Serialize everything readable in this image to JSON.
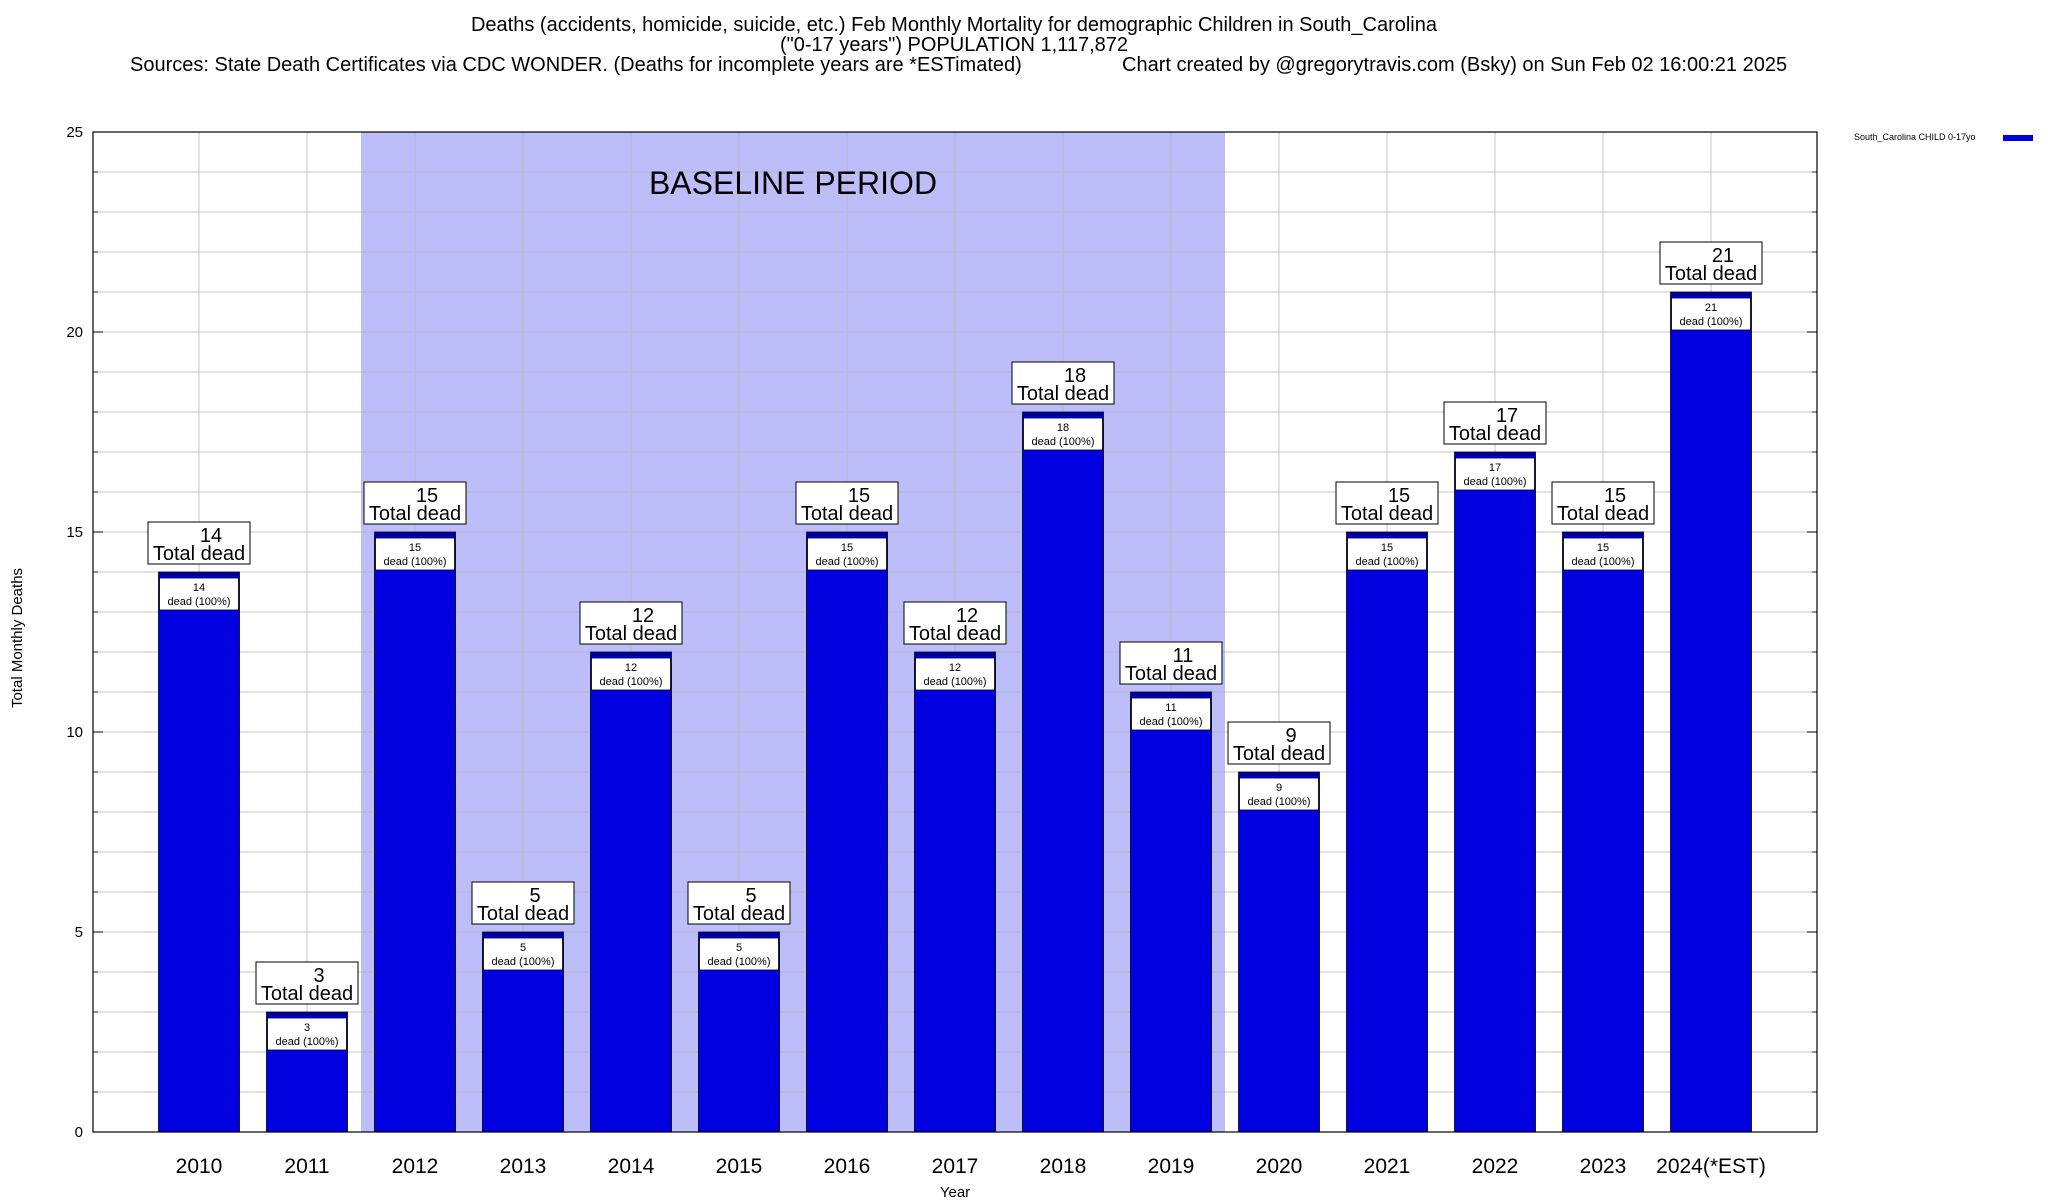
{
  "chart_data": {
    "type": "bar",
    "title": "Deaths (accidents, homicide, suicide, etc.) Feb Monthly Mortality for demographic Children in South_Carolina",
    "subtitle": "(\"0-17 years\") POPULATION 1,117,872",
    "sources": "Sources: State Death Certificates via CDC WONDER. (Deaths for incomplete years are *ESTimated)",
    "credit": "Chart created by @gregorytravis.com (Bsky) on Sun Feb 02 16:00:21 2025",
    "xlabel": "Year",
    "ylabel": "Total Monthly Deaths",
    "ylim": [
      0,
      25
    ],
    "yticks": [
      0,
      5,
      10,
      15,
      20,
      25
    ],
    "grid": true,
    "legend_position": "top-right",
    "baseline_label": "BASELINE PERIOD",
    "baseline_range": [
      "2012",
      "2019"
    ],
    "categories": [
      "2010",
      "2011",
      "2012",
      "2013",
      "2014",
      "2015",
      "2016",
      "2017",
      "2018",
      "2019",
      "2020",
      "2021",
      "2022",
      "2023",
      "2024(*EST)"
    ],
    "series": [
      {
        "name": "South_Carolina CHILD 0-17yo",
        "values": [
          14,
          3,
          15,
          5,
          12,
          5,
          15,
          12,
          18,
          11,
          9,
          15,
          17,
          15,
          21
        ]
      }
    ],
    "total_label_suffix": "Total dead",
    "segment_label_suffix": "dead (100%)",
    "colors": {
      "bar": "#0000e0",
      "bar_top": "#00008b",
      "baseline_fill": "#bdbdfa"
    }
  }
}
